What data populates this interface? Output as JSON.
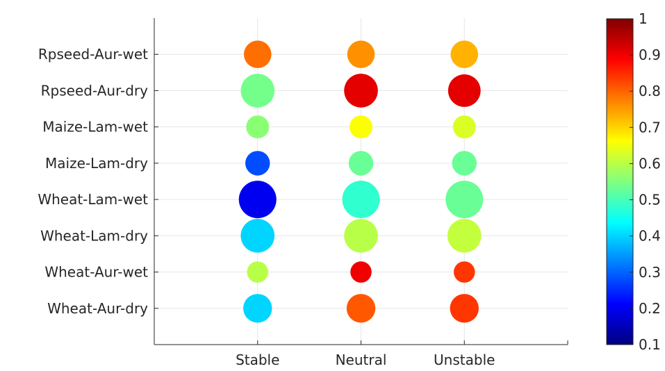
{
  "chart_data": {
    "type": "scatter",
    "title": "",
    "xlabel": "",
    "ylabel": "",
    "x_categories": [
      "Stable",
      "Neutral",
      "Unstable"
    ],
    "y_categories": [
      "Wheat-Aur-dry",
      "Wheat-Aur-wet",
      "Wheat-Lam-dry",
      "Wheat-Lam-wet",
      "Maize-Lam-dry",
      "Maize-Lam-wet",
      "Rpseed-Aur-dry",
      "Rpseed-Aur-wet"
    ],
    "xlim": [
      0,
      4
    ],
    "ylim": [
      0,
      9
    ],
    "grid": true,
    "bubble_size_encoding": "relative marker size",
    "points": [
      {
        "x": "Stable",
        "y": "Rpseed-Aur-wet",
        "value": 0.79,
        "size": 0.66
      },
      {
        "x": "Neutral",
        "y": "Rpseed-Aur-wet",
        "value": 0.76,
        "size": 0.66
      },
      {
        "x": "Unstable",
        "y": "Rpseed-Aur-wet",
        "value": 0.73,
        "size": 0.66
      },
      {
        "x": "Stable",
        "y": "Rpseed-Aur-dry",
        "value": 0.54,
        "size": 0.81
      },
      {
        "x": "Neutral",
        "y": "Rpseed-Aur-dry",
        "value": 0.91,
        "size": 0.81
      },
      {
        "x": "Unstable",
        "y": "Rpseed-Aur-dry",
        "value": 0.91,
        "size": 0.78
      },
      {
        "x": "Stable",
        "y": "Maize-Lam-wet",
        "value": 0.56,
        "size": 0.55
      },
      {
        "x": "Neutral",
        "y": "Maize-Lam-wet",
        "value": 0.66,
        "size": 0.55
      },
      {
        "x": "Unstable",
        "y": "Maize-Lam-wet",
        "value": 0.63,
        "size": 0.55
      },
      {
        "x": "Stable",
        "y": "Maize-Lam-dry",
        "value": 0.28,
        "size": 0.59
      },
      {
        "x": "Neutral",
        "y": "Maize-Lam-dry",
        "value": 0.53,
        "size": 0.59
      },
      {
        "x": "Unstable",
        "y": "Maize-Lam-dry",
        "value": 0.53,
        "size": 0.59
      },
      {
        "x": "Stable",
        "y": "Wheat-Lam-wet",
        "value": 0.2,
        "size": 0.9
      },
      {
        "x": "Neutral",
        "y": "Wheat-Lam-wet",
        "value": 0.48,
        "size": 0.9
      },
      {
        "x": "Unstable",
        "y": "Wheat-Lam-wet",
        "value": 0.53,
        "size": 0.9
      },
      {
        "x": "Stable",
        "y": "Wheat-Lam-dry",
        "value": 0.4,
        "size": 0.81
      },
      {
        "x": "Neutral",
        "y": "Wheat-Lam-dry",
        "value": 0.6,
        "size": 0.81
      },
      {
        "x": "Unstable",
        "y": "Wheat-Lam-dry",
        "value": 0.61,
        "size": 0.81
      },
      {
        "x": "Stable",
        "y": "Wheat-Aur-wet",
        "value": 0.6,
        "size": 0.51
      },
      {
        "x": "Neutral",
        "y": "Wheat-Aur-wet",
        "value": 0.9,
        "size": 0.51
      },
      {
        "x": "Unstable",
        "y": "Wheat-Aur-wet",
        "value": 0.84,
        "size": 0.51
      },
      {
        "x": "Stable",
        "y": "Wheat-Aur-dry",
        "value": 0.4,
        "size": 0.69
      },
      {
        "x": "Neutral",
        "y": "Wheat-Aur-dry",
        "value": 0.81,
        "size": 0.69
      },
      {
        "x": "Unstable",
        "y": "Wheat-Aur-dry",
        "value": 0.84,
        "size": 0.69
      }
    ],
    "colorbar": {
      "colormap": "jet",
      "min": 0.1,
      "max": 1,
      "ticks": [
        "0.1",
        "0.2",
        "0.3",
        "0.4",
        "0.5",
        "0.6",
        "0.7",
        "0.8",
        "0.9",
        "1"
      ]
    }
  }
}
